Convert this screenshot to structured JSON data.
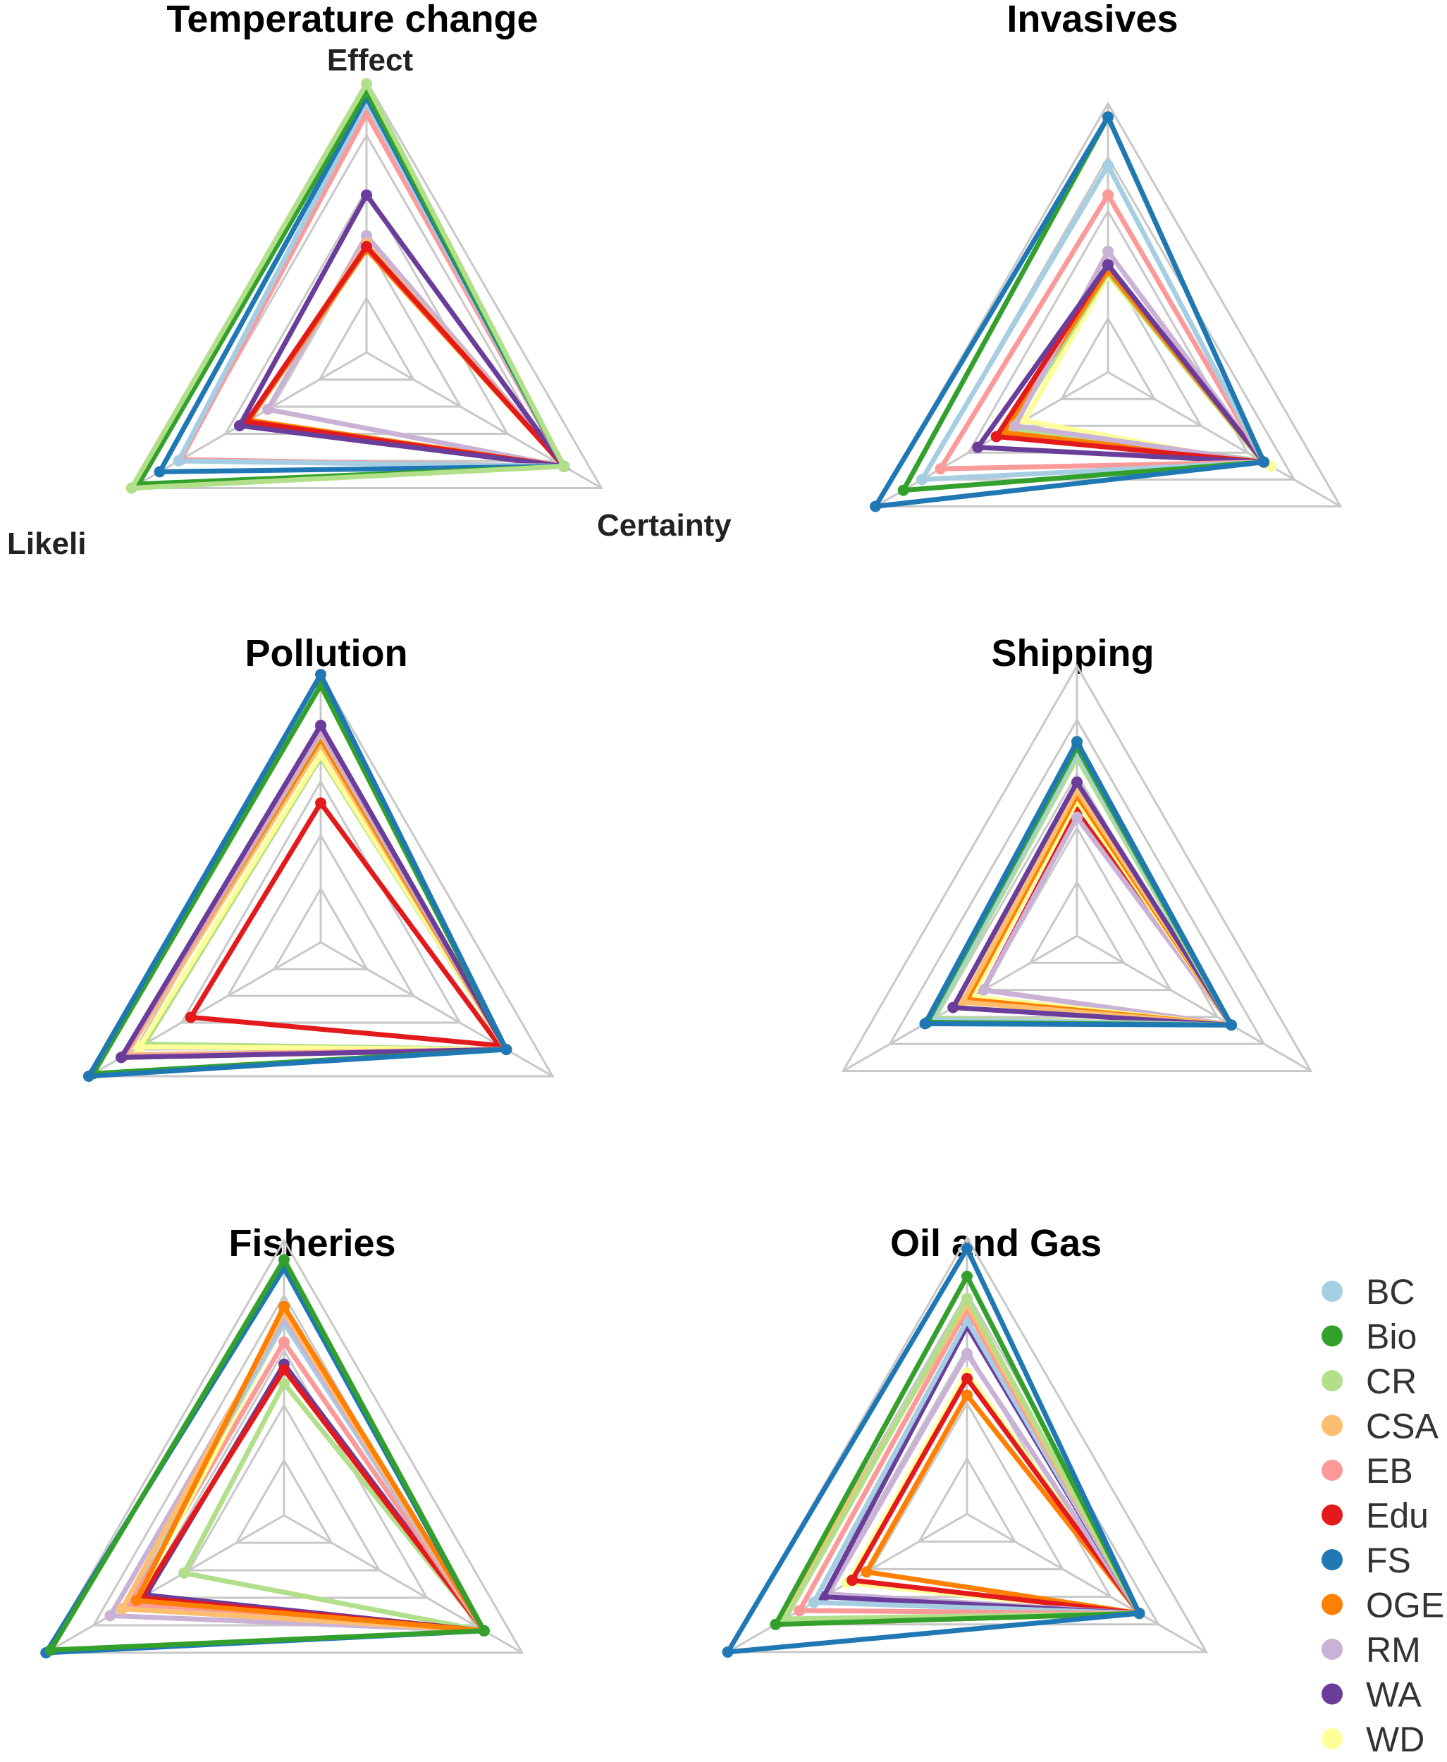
{
  "chart_data": {
    "type": "radar",
    "axes": [
      "Effect",
      "Certainty",
      "Likeli"
    ],
    "scale_max": 1,
    "grid_levels": 5,
    "legend": {
      "placement": "bottom-right",
      "entries": [
        {
          "name": "BC",
          "color": "#a6cee3"
        },
        {
          "name": "Bio",
          "color": "#33a02c"
        },
        {
          "name": "CR",
          "color": "#b2df8a"
        },
        {
          "name": "CSA",
          "color": "#fdbf6f"
        },
        {
          "name": "EB",
          "color": "#fb9a99"
        },
        {
          "name": "Edu",
          "color": "#e31a1c"
        },
        {
          "name": "FS",
          "color": "#1f78b4"
        },
        {
          "name": "OGE",
          "color": "#ff7f00"
        },
        {
          "name": "RM",
          "color": "#cab2d6"
        },
        {
          "name": "WA",
          "color": "#6a3d9a"
        },
        {
          "name": "WD",
          "color": "#ffff99"
        }
      ]
    },
    "panels": [
      {
        "title": "Temperature change",
        "show_axis_labels": true,
        "series": [
          {
            "name": "WD",
            "values": [
              0.43,
              0.84,
              0.42
            ]
          },
          {
            "name": "RM",
            "values": [
              0.43,
              0.84,
              0.42
            ]
          },
          {
            "name": "CSA",
            "values": [
              0.4,
              0.84,
              0.5
            ]
          },
          {
            "name": "OGE",
            "values": [
              0.38,
              0.84,
              0.5
            ]
          },
          {
            "name": "Edu",
            "values": [
              0.39,
              0.84,
              0.51
            ]
          },
          {
            "name": "WA",
            "values": [
              0.58,
              0.84,
              0.54
            ]
          },
          {
            "name": "EB",
            "values": [
              0.88,
              0.84,
              0.79
            ]
          },
          {
            "name": "BC",
            "values": [
              0.92,
              0.84,
              0.8
            ]
          },
          {
            "name": "FS",
            "values": [
              0.94,
              0.84,
              0.88
            ]
          },
          {
            "name": "Bio",
            "values": [
              0.96,
              0.84,
              0.97
            ]
          },
          {
            "name": "CR",
            "values": [
              0.99,
              0.84,
              1.0
            ]
          }
        ]
      },
      {
        "title": "Invasives",
        "show_axis_labels": false,
        "series": [
          {
            "name": "WD",
            "values": [
              0.36,
              0.7,
              0.36
            ]
          },
          {
            "name": "CR",
            "values": [
              0.37,
              0.66,
              0.42
            ]
          },
          {
            "name": "OGE",
            "values": [
              0.38,
              0.67,
              0.45
            ]
          },
          {
            "name": "RM",
            "values": [
              0.45,
              0.67,
              0.4
            ]
          },
          {
            "name": "Edu",
            "values": [
              0.4,
              0.67,
              0.48
            ]
          },
          {
            "name": "WA",
            "values": [
              0.4,
              0.67,
              0.56
            ]
          },
          {
            "name": "EB",
            "values": [
              0.66,
              0.67,
              0.72
            ]
          },
          {
            "name": "BC",
            "values": [
              0.77,
              0.67,
              0.8
            ]
          },
          {
            "name": "Bio",
            "values": [
              0.95,
              0.67,
              0.88
            ]
          },
          {
            "name": "FS",
            "values": [
              0.95,
              0.67,
              1.0
            ]
          }
        ]
      },
      {
        "title": "Pollution",
        "show_axis_labels": false,
        "series": [
          {
            "name": "Edu",
            "values": [
              0.52,
              0.77,
              0.56
            ]
          },
          {
            "name": "CR",
            "values": [
              0.69,
              0.8,
              0.76
            ]
          },
          {
            "name": "WD",
            "values": [
              0.7,
              0.8,
              0.78
            ]
          },
          {
            "name": "CSA",
            "values": [
              0.74,
              0.8,
              0.84
            ]
          },
          {
            "name": "OGE",
            "values": [
              0.76,
              0.8,
              0.86
            ]
          },
          {
            "name": "BC",
            "values": [
              0.78,
              0.8,
              0.85
            ]
          },
          {
            "name": "EB",
            "values": [
              0.79,
              0.8,
              0.85
            ]
          },
          {
            "name": "RM",
            "values": [
              0.8,
              0.8,
              0.86
            ]
          },
          {
            "name": "WA",
            "values": [
              0.81,
              0.8,
              0.86
            ]
          },
          {
            "name": "Bio",
            "values": [
              0.96,
              0.8,
              0.98
            ]
          },
          {
            "name": "FS",
            "values": [
              1.0,
              0.8,
              1.0
            ]
          }
        ]
      },
      {
        "title": "Shipping",
        "show_axis_labels": false,
        "series": [
          {
            "name": "Edu",
            "values": [
              0.46,
              0.66,
              0.4
            ]
          },
          {
            "name": "RM",
            "values": [
              0.44,
              0.66,
              0.4
            ]
          },
          {
            "name": "WD",
            "values": [
              0.5,
              0.66,
              0.45
            ]
          },
          {
            "name": "OGE",
            "values": [
              0.52,
              0.66,
              0.47
            ]
          },
          {
            "name": "CSA",
            "values": [
              0.54,
              0.66,
              0.49
            ]
          },
          {
            "name": "WA",
            "values": [
              0.57,
              0.66,
              0.53
            ]
          },
          {
            "name": "CR",
            "values": [
              0.66,
              0.66,
              0.61
            ]
          },
          {
            "name": "BC",
            "values": [
              0.68,
              0.66,
              0.62
            ]
          },
          {
            "name": "Bio",
            "values": [
              0.7,
              0.66,
              0.64
            ]
          },
          {
            "name": "FS",
            "values": [
              0.72,
              0.66,
              0.65
            ]
          }
        ]
      },
      {
        "title": "Fisheries",
        "show_axis_labels": false,
        "series": [
          {
            "name": "CR",
            "values": [
              0.48,
              0.84,
              0.42
            ]
          },
          {
            "name": "WA",
            "values": [
              0.55,
              0.84,
              0.58
            ]
          },
          {
            "name": "Edu",
            "values": [
              0.53,
              0.84,
              0.6
            ]
          },
          {
            "name": "EB",
            "values": [
              0.63,
              0.84,
              0.65
            ]
          },
          {
            "name": "WD",
            "values": [
              0.7,
              0.84,
              0.62
            ]
          },
          {
            "name": "BC",
            "values": [
              0.7,
              0.84,
              0.68
            ]
          },
          {
            "name": "RM",
            "values": [
              0.72,
              0.84,
              0.73
            ]
          },
          {
            "name": "CSA",
            "values": [
              0.74,
              0.84,
              0.68
            ]
          },
          {
            "name": "OGE",
            "values": [
              0.76,
              0.84,
              0.62
            ]
          },
          {
            "name": "FS",
            "values": [
              0.9,
              0.84,
              1.0
            ]
          },
          {
            "name": "Bio",
            "values": [
              0.93,
              0.84,
              0.98
            ]
          }
        ]
      },
      {
        "title": "Oil and Gas",
        "show_axis_labels": false,
        "series": [
          {
            "name": "OGE",
            "values": [
              0.43,
              0.72,
              0.42
            ]
          },
          {
            "name": "WD",
            "values": [
              0.51,
              0.72,
              0.5
            ]
          },
          {
            "name": "Edu",
            "values": [
              0.49,
              0.72,
              0.48
            ]
          },
          {
            "name": "RM",
            "values": [
              0.58,
              0.72,
              0.58
            ]
          },
          {
            "name": "WA",
            "values": [
              0.68,
              0.72,
              0.6
            ]
          },
          {
            "name": "BC",
            "values": [
              0.7,
              0.72,
              0.64
            ]
          },
          {
            "name": "EB",
            "values": [
              0.74,
              0.72,
              0.7
            ]
          },
          {
            "name": "CSA",
            "values": [
              0.76,
              0.72,
              0.8
            ]
          },
          {
            "name": "CR",
            "values": [
              0.78,
              0.72,
              0.76
            ]
          },
          {
            "name": "Bio",
            "values": [
              0.86,
              0.72,
              0.8
            ]
          },
          {
            "name": "FS",
            "values": [
              0.96,
              0.72,
              1.0
            ]
          }
        ]
      }
    ]
  }
}
